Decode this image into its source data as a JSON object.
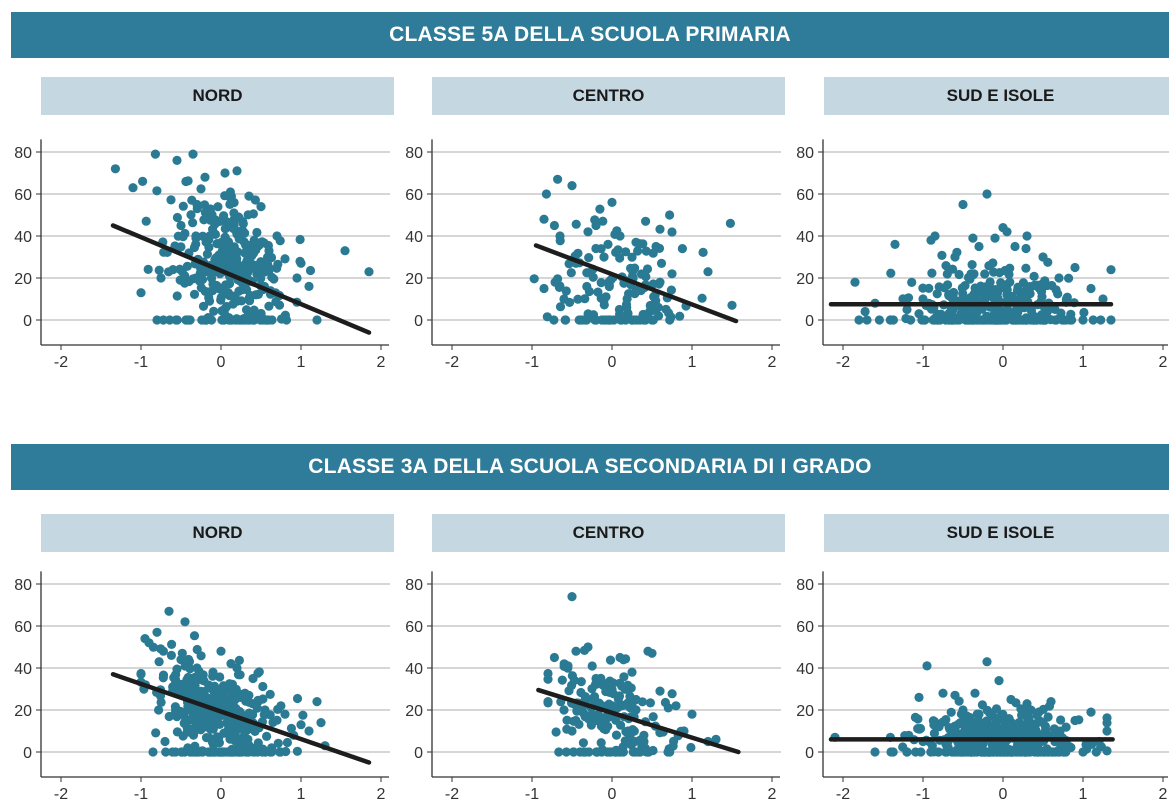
{
  "sections": [
    {
      "title": "CLASSE 5A DELLA SCUOLA PRIMARIA"
    },
    {
      "title": "CLASSE 3A DELLA SCUOLA SECONDARIA DI I GRADO"
    }
  ],
  "colors": {
    "band": "#2e7c99",
    "panel_header": "#c5d7e1",
    "point": "#2a7a94",
    "line": "#1d1d1d",
    "grid": "#c8c8c8"
  },
  "chart_data": [
    {
      "type": "scatter",
      "section": "CLASSE 5A DELLA SCUOLA PRIMARIA",
      "panel": "NORD",
      "xlim": [
        -2.2,
        2.15
      ],
      "ylim": [
        -12,
        86
      ],
      "xticks": [
        -2,
        -1,
        0,
        1,
        2
      ],
      "yticks": [
        0,
        20,
        40,
        60,
        80
      ],
      "cluster": {
        "n": 330,
        "cx": 0.1,
        "cy": 28,
        "sx": 0.38,
        "sy": 15,
        "slope": -12,
        "zero_frac": 0.1,
        "xmin": -1.3,
        "xmax": 1.9
      },
      "points": [
        [
          -1.32,
          72
        ],
        [
          -1.1,
          63
        ],
        [
          -0.98,
          66
        ],
        [
          -0.82,
          79
        ],
        [
          -0.55,
          76
        ],
        [
          -0.35,
          79
        ],
        [
          -0.2,
          68
        ],
        [
          0.05,
          70
        ],
        [
          0.2,
          71
        ],
        [
          0.35,
          59
        ],
        [
          0.5,
          54
        ],
        [
          -0.8,
          0
        ],
        [
          -1.0,
          13
        ],
        [
          -0.75,
          20
        ],
        [
          1.2,
          0
        ],
        [
          1.55,
          33
        ],
        [
          1.85,
          23
        ],
        [
          1.0,
          27
        ],
        [
          0.95,
          20
        ],
        [
          0.7,
          40
        ],
        [
          0.6,
          33
        ],
        [
          1.1,
          16
        ],
        [
          -0.6,
          24
        ],
        [
          -0.5,
          45
        ],
        [
          -0.3,
          55
        ]
      ],
      "fit": {
        "x": [
          -1.35,
          1.85
        ],
        "y": [
          45,
          -6
        ]
      }
    },
    {
      "type": "scatter",
      "section": "CLASSE 5A DELLA SCUOLA PRIMARIA",
      "panel": "CENTRO",
      "xlim": [
        -2.2,
        2.15
      ],
      "ylim": [
        -12,
        86
      ],
      "xticks": [
        -2,
        -1,
        0,
        1,
        2
      ],
      "yticks": [
        0,
        20,
        40,
        60,
        80
      ],
      "cluster": {
        "n": 140,
        "cx": 0.1,
        "cy": 20,
        "sx": 0.45,
        "sy": 12,
        "slope": -10,
        "zero_frac": 0.22,
        "xmin": -1.0,
        "xmax": 1.55
      },
      "points": [
        [
          -0.68,
          67
        ],
        [
          -0.5,
          64
        ],
        [
          -0.82,
          60
        ],
        [
          -0.85,
          48
        ],
        [
          -0.72,
          45
        ],
        [
          0.0,
          56
        ],
        [
          0.72,
          50
        ],
        [
          0.42,
          47
        ],
        [
          1.48,
          46
        ],
        [
          -0.65,
          40
        ],
        [
          -0.3,
          42
        ],
        [
          -0.2,
          45
        ],
        [
          -0.1,
          30
        ],
        [
          0.55,
          35
        ],
        [
          0.88,
          34
        ],
        [
          1.2,
          23
        ],
        [
          1.5,
          7
        ],
        [
          0.75,
          22
        ],
        [
          -0.85,
          15
        ],
        [
          -0.6,
          10
        ],
        [
          -0.45,
          27
        ],
        [
          0.3,
          37
        ],
        [
          0.1,
          40
        ],
        [
          -0.05,
          36
        ],
        [
          0.6,
          18
        ]
      ],
      "fit": {
        "x": [
          -0.95,
          1.55
        ],
        "y": [
          35.5,
          -0.5
        ]
      }
    },
    {
      "type": "scatter",
      "section": "CLASSE 5A DELLA SCUOLA PRIMARIA",
      "panel": "SUD E ISOLE",
      "xlim": [
        -2.2,
        2.15
      ],
      "ylim": [
        -12,
        86
      ],
      "xticks": [
        -2,
        -1,
        0,
        1,
        2
      ],
      "yticks": [
        0,
        20,
        40,
        60,
        80
      ],
      "cluster": {
        "n": 330,
        "cx": -0.1,
        "cy": 10,
        "sx": 0.55,
        "sy": 9,
        "slope": 0,
        "zero_frac": 0.3,
        "xmin": -1.9,
        "xmax": 1.35
      },
      "points": [
        [
          -0.2,
          60
        ],
        [
          -0.85,
          40
        ],
        [
          -0.5,
          55
        ],
        [
          0.0,
          44
        ],
        [
          0.05,
          42
        ],
        [
          -0.1,
          39
        ],
        [
          -1.35,
          36
        ],
        [
          -0.9,
          38
        ],
        [
          0.3,
          40
        ],
        [
          -1.85,
          18
        ],
        [
          -1.6,
          8
        ],
        [
          -1.4,
          0
        ],
        [
          -1.8,
          0
        ],
        [
          -1.7,
          0
        ],
        [
          1.35,
          0
        ],
        [
          1.25,
          10
        ],
        [
          1.1,
          15
        ],
        [
          0.9,
          25
        ],
        [
          0.5,
          30
        ],
        [
          -0.3,
          35
        ],
        [
          0.15,
          35
        ],
        [
          -0.6,
          30
        ],
        [
          0.7,
          20
        ],
        [
          -1.0,
          10
        ],
        [
          -1.2,
          5
        ]
      ],
      "fit": {
        "x": [
          -2.15,
          1.35
        ],
        "y": [
          7.5,
          7.5
        ]
      }
    },
    {
      "type": "scatter",
      "section": "CLASSE 3A DELLA SCUOLA SECONDARIA DI I GRADO",
      "panel": "NORD",
      "xlim": [
        -2.2,
        2.15
      ],
      "ylim": [
        -12,
        86
      ],
      "xticks": [
        -2,
        -1,
        0,
        1,
        2
      ],
      "yticks": [
        0,
        20,
        40,
        60,
        80
      ],
      "cluster": {
        "n": 380,
        "cx": -0.05,
        "cy": 20,
        "sx": 0.38,
        "sy": 11,
        "slope": -13,
        "zero_frac": 0.14,
        "xmin": -1.0,
        "xmax": 1.4
      },
      "points": [
        [
          -0.65,
          67
        ],
        [
          -0.45,
          62
        ],
        [
          -0.8,
          57
        ],
        [
          -0.95,
          54
        ],
        [
          -0.9,
          52
        ],
        [
          -0.72,
          48
        ],
        [
          -0.5,
          44
        ],
        [
          -0.3,
          40
        ],
        [
          0.0,
          48
        ],
        [
          -1.0,
          37
        ],
        [
          -0.78,
          20
        ],
        [
          -0.85,
          0
        ],
        [
          -0.7,
          5
        ],
        [
          1.2,
          24
        ],
        [
          1.25,
          14
        ],
        [
          1.0,
          13
        ],
        [
          0.8,
          18
        ],
        [
          1.1,
          10
        ],
        [
          -0.1,
          38
        ],
        [
          0.4,
          35
        ],
        [
          0.3,
          28
        ],
        [
          -0.6,
          30
        ],
        [
          0.2,
          40
        ],
        [
          0.55,
          20
        ],
        [
          1.3,
          3
        ]
      ],
      "fit": {
        "x": [
          -1.35,
          1.85
        ],
        "y": [
          37,
          -5
        ]
      }
    },
    {
      "type": "scatter",
      "section": "CLASSE 3A DELLA SCUOLA SECONDARIA DI I GRADO",
      "panel": "CENTRO",
      "xlim": [
        -2.2,
        2.15
      ],
      "ylim": [
        -12,
        86
      ],
      "xticks": [
        -2,
        -1,
        0,
        1,
        2
      ],
      "yticks": [
        0,
        20,
        40,
        60,
        80
      ],
      "cluster": {
        "n": 170,
        "cx": 0.0,
        "cy": 20,
        "sx": 0.38,
        "sy": 11,
        "slope": -12,
        "zero_frac": 0.16,
        "xmin": -0.8,
        "xmax": 1.3
      },
      "points": [
        [
          -0.5,
          74
        ],
        [
          -0.3,
          50
        ],
        [
          -0.45,
          48
        ],
        [
          -0.55,
          41
        ],
        [
          -0.72,
          45
        ],
        [
          0.45,
          48
        ],
        [
          0.5,
          47
        ],
        [
          0.1,
          45
        ],
        [
          0.25,
          38
        ],
        [
          0.6,
          29
        ],
        [
          0.8,
          22
        ],
        [
          1.0,
          18
        ],
        [
          1.2,
          5
        ],
        [
          1.3,
          6
        ],
        [
          -0.4,
          0
        ],
        [
          -0.5,
          10
        ],
        [
          -0.6,
          20
        ],
        [
          0.0,
          30
        ],
        [
          -0.2,
          35
        ],
        [
          0.2,
          10
        ],
        [
          0.4,
          5
        ],
        [
          0.7,
          0
        ],
        [
          -0.1,
          15
        ],
        [
          0.9,
          10
        ],
        [
          0.3,
          25
        ]
      ],
      "fit": {
        "x": [
          -0.92,
          1.58
        ],
        "y": [
          29.5,
          0
        ]
      }
    },
    {
      "type": "scatter",
      "section": "CLASSE 3A DELLA SCUOLA SECONDARIA DI I GRADO",
      "panel": "SUD E ISOLE",
      "xlim": [
        -2.2,
        2.15
      ],
      "ylim": [
        -12,
        86
      ],
      "xticks": [
        -2,
        -1,
        0,
        1,
        2
      ],
      "yticks": [
        0,
        20,
        40,
        60,
        80
      ],
      "cluster": {
        "n": 420,
        "cx": -0.05,
        "cy": 8,
        "sx": 0.5,
        "sy": 6,
        "slope": 0,
        "zero_frac": 0.25,
        "xmin": -1.7,
        "xmax": 1.3
      },
      "points": [
        [
          -0.95,
          41
        ],
        [
          -0.2,
          43
        ],
        [
          -0.35,
          28
        ],
        [
          -0.05,
          34
        ],
        [
          -0.6,
          27
        ],
        [
          -1.05,
          26
        ],
        [
          -0.75,
          28
        ],
        [
          0.3,
          23
        ],
        [
          0.6,
          24
        ],
        [
          1.1,
          19
        ],
        [
          0.9,
          15
        ],
        [
          -2.1,
          7
        ],
        [
          -1.6,
          0
        ],
        [
          -1.4,
          0
        ],
        [
          -1.2,
          0
        ],
        [
          1.3,
          10
        ],
        [
          1.2,
          5
        ],
        [
          1.0,
          0
        ],
        [
          0.8,
          2
        ],
        [
          -0.5,
          20
        ],
        [
          0.1,
          25
        ],
        [
          -0.3,
          18
        ],
        [
          0.5,
          14
        ],
        [
          -0.8,
          12
        ],
        [
          -1.0,
          5
        ]
      ],
      "fit": {
        "x": [
          -2.15,
          1.37
        ],
        "y": [
          6,
          6
        ]
      }
    }
  ],
  "panels": {
    "top": [
      {
        "title": "NORD"
      },
      {
        "title": "CENTRO"
      },
      {
        "title": "SUD E ISOLE"
      }
    ],
    "bottom": [
      {
        "title": "NORD"
      },
      {
        "title": "CENTRO"
      },
      {
        "title": "SUD E ISOLE"
      }
    ]
  }
}
